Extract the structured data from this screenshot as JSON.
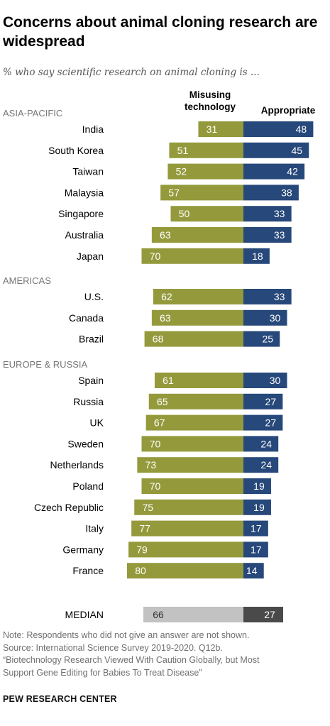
{
  "title": "Concerns about animal cloning research are widespread",
  "subtitle": "% who say scientific research on animal cloning is ...",
  "note": [
    "Note: Respondents who did not give an answer are not shown.",
    "Source: International Science Survey 2019-2020. Q12b.",
    "“Biotechnology Research Viewed With Caution Globally, but Most",
    "Support Gene Editing for Babies To Treat Disease”"
  ],
  "brand": "PEW RESEARCH CENTER",
  "colors": {
    "misusing": "#949a3c",
    "appropriate": "#27487a",
    "median_misusing": "#c2c2c2",
    "median_appropriate": "#4a4a4a",
    "group_label": "#777777"
  },
  "chart_data": {
    "type": "bar",
    "orientation": "diverging-horizontal",
    "series_labels": [
      {
        "key": "misusing",
        "name": "Misusing technology"
      },
      {
        "key": "appropriate",
        "name": "Appropriate"
      }
    ],
    "groups": [
      {
        "name": "ASIA-PACIFIC",
        "rows": [
          {
            "label": "India",
            "misusing": 31,
            "appropriate": 48
          },
          {
            "label": "South Korea",
            "misusing": 51,
            "appropriate": 45
          },
          {
            "label": "Taiwan",
            "misusing": 52,
            "appropriate": 42
          },
          {
            "label": "Malaysia",
            "misusing": 57,
            "appropriate": 38
          },
          {
            "label": "Singapore",
            "misusing": 50,
            "appropriate": 33
          },
          {
            "label": "Australia",
            "misusing": 63,
            "appropriate": 33
          },
          {
            "label": "Japan",
            "misusing": 70,
            "appropriate": 18
          }
        ]
      },
      {
        "name": "AMERICAS",
        "rows": [
          {
            "label": "U.S.",
            "misusing": 62,
            "appropriate": 33
          },
          {
            "label": "Canada",
            "misusing": 63,
            "appropriate": 30
          },
          {
            "label": "Brazil",
            "misusing": 68,
            "appropriate": 25
          }
        ]
      },
      {
        "name": "EUROPE & RUSSIA",
        "rows": [
          {
            "label": "Spain",
            "misusing": 61,
            "appropriate": 30
          },
          {
            "label": "Russia",
            "misusing": 65,
            "appropriate": 27
          },
          {
            "label": "UK",
            "misusing": 67,
            "appropriate": 27
          },
          {
            "label": "Sweden",
            "misusing": 70,
            "appropriate": 24
          },
          {
            "label": "Netherlands",
            "misusing": 73,
            "appropriate": 24
          },
          {
            "label": "Poland",
            "misusing": 70,
            "appropriate": 19
          },
          {
            "label": "Czech Republic",
            "misusing": 75,
            "appropriate": 19
          },
          {
            "label": "Italy",
            "misusing": 77,
            "appropriate": 17
          },
          {
            "label": "Germany",
            "misusing": 79,
            "appropriate": 17
          },
          {
            "label": "France",
            "misusing": 80,
            "appropriate": 14
          }
        ]
      }
    ],
    "median": {
      "label": "MEDIAN",
      "misusing": 66,
      "appropriate": 27
    }
  }
}
